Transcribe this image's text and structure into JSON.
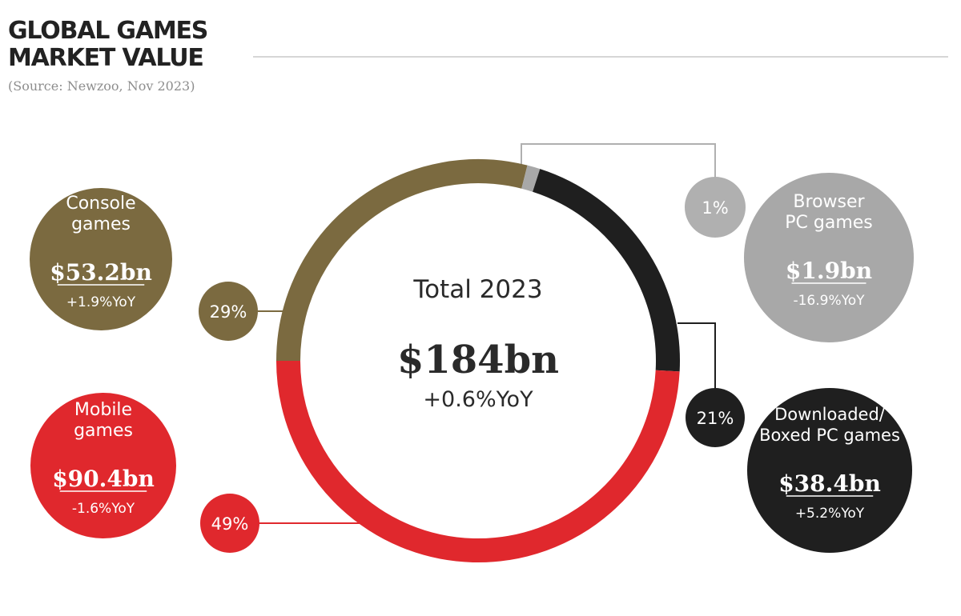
{
  "title": "GLOBAL GAMES MARKET VALUE",
  "source": "(Source: Newzoo, Nov 2023)",
  "chart_data": {
    "type": "pie",
    "title": "GLOBAL GAMES MARKET VALUE",
    "subtitle": "(Source: Newzoo, Nov 2023)",
    "center": {
      "label": "Total 2023",
      "value_text": "$184bn",
      "yoy_text": "+0.6%YoY",
      "total_bn": 184,
      "yoy_pct": 0.6
    },
    "segments": [
      {
        "key": "mobile",
        "label_lines": [
          "Mobile",
          "games"
        ],
        "value_text": "$90.4bn",
        "yoy_text": "-1.6%YoY",
        "share_text": "49%",
        "value_bn": 90.4,
        "share": 49,
        "yoy_pct": -1.6,
        "color": "#e0282d",
        "share_color": "#e0282d"
      },
      {
        "key": "console",
        "label_lines": [
          "Console",
          "games"
        ],
        "value_text": "$53.2bn",
        "yoy_text": "+1.9%YoY",
        "share_text": "29%",
        "value_bn": 53.2,
        "share": 29,
        "yoy_pct": 1.9,
        "color": "#7b6a40",
        "share_color": "#7b6a40"
      },
      {
        "key": "browser",
        "label_lines": [
          "Browser",
          "PC games"
        ],
        "value_text": "$1.9bn",
        "yoy_text": "-16.9%YoY",
        "share_text": "1%",
        "value_bn": 1.9,
        "share": 1,
        "yoy_pct": -16.9,
        "color": "#a8a8a8",
        "share_color": "#b0b0b0"
      },
      {
        "key": "downloaded",
        "label_lines": [
          "Downloaded/",
          "Boxed PC games"
        ],
        "value_text": "$38.4bn",
        "yoy_text": "+5.2%YoY",
        "share_text": "21%",
        "value_bn": 38.4,
        "share": 21,
        "yoy_pct": 5.2,
        "color": "#1f1f1f",
        "share_color": "#1f1f1f"
      }
    ]
  }
}
